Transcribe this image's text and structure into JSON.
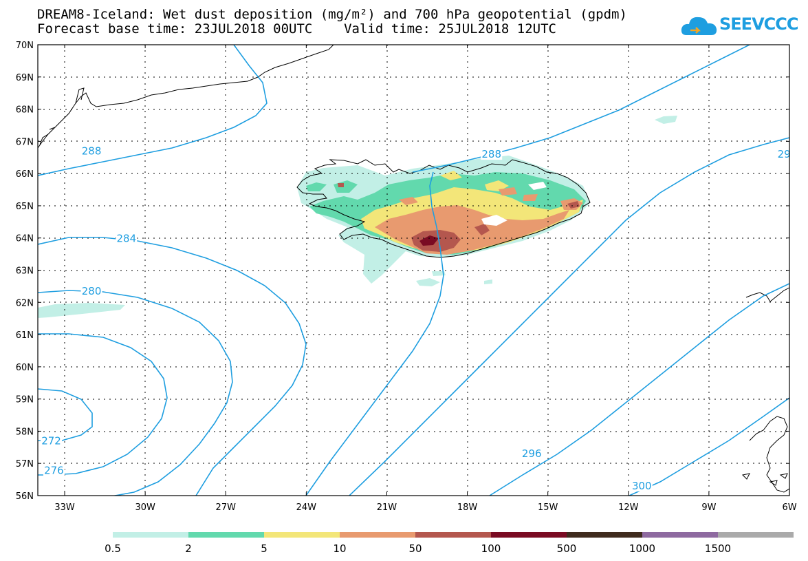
{
  "title": {
    "line1": "DREAM8-Iceland: Wet dust deposition (mg/m²) and 700 hPa geopotential (gpdm)",
    "line2": "Forecast base time: 23JUL2018 00UTC    Valid time: 25JUL2018 12UTC"
  },
  "logo": {
    "text": "SEEVCCC",
    "icon": "cloud-icon"
  },
  "map": {
    "lat_labels": [
      "70N",
      "69N",
      "68N",
      "67N",
      "66N",
      "65N",
      "64N",
      "63N",
      "62N",
      "61N",
      "60N",
      "59N",
      "58N",
      "57N",
      "56N"
    ],
    "lon_labels": [
      "33W",
      "30W",
      "27W",
      "24W",
      "21W",
      "18W",
      "15W",
      "12W",
      "9W",
      "6W"
    ],
    "contour_labels": [
      {
        "text": "288",
        "lon": -32.0,
        "lat": 66.7
      },
      {
        "text": "288",
        "lon": -17.1,
        "lat": 66.6
      },
      {
        "text": "284",
        "lon": -30.7,
        "lat": 63.98
      },
      {
        "text": "280",
        "lon": -32.0,
        "lat": 62.35
      },
      {
        "text": "272",
        "lon": -33.5,
        "lat": 57.7
      },
      {
        "text": "276",
        "lon": -33.4,
        "lat": 56.78
      },
      {
        "text": "296",
        "lon": -15.6,
        "lat": 57.3
      },
      {
        "text": "300",
        "lon": -11.5,
        "lat": 56.3
      },
      {
        "text": "29",
        "lon": -6.2,
        "lat": 66.6
      }
    ],
    "contour_color": "#1e9ee0"
  },
  "colorbar": {
    "labels": [
      "0.5",
      "2",
      "5",
      "10",
      "50",
      "100",
      "500",
      "1000",
      "1500"
    ],
    "colors": [
      "#c2efe6",
      "#62d9ad",
      "#f3e679",
      "#e89a6f",
      "#b4574e",
      "#7a0b23",
      "#3f2b1e",
      "#8e6aa0",
      "#aaaaaa"
    ]
  }
}
